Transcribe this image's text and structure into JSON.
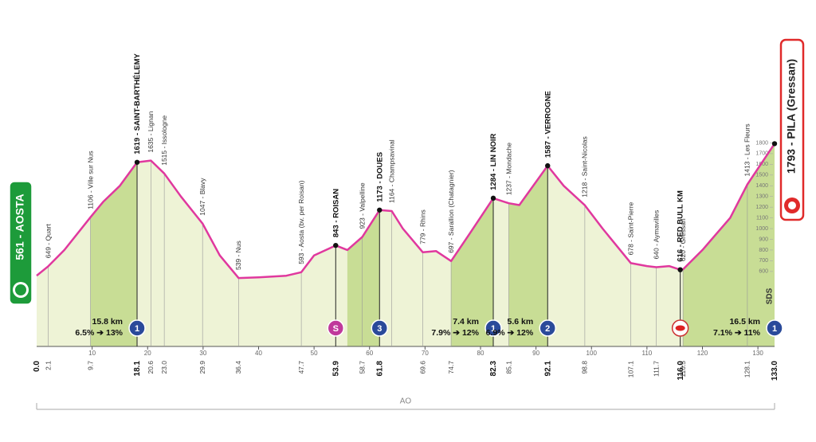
{
  "chart_data": {
    "type": "area",
    "start": {
      "label": "561 - AOSTA",
      "km": 0,
      "elevation": 561
    },
    "finish": {
      "label": "1793 - PILA (Gressan)",
      "km": 133,
      "elevation": 1793
    },
    "x": [
      0,
      2.1,
      5,
      9.7,
      12,
      15,
      18.1,
      20.6,
      23,
      26,
      29.9,
      33,
      36.4,
      40,
      45,
      47.7,
      50,
      53.9,
      56,
      58.7,
      61.8,
      64,
      66,
      69.6,
      72,
      74.7,
      78,
      82.3,
      85.1,
      87,
      92.1,
      95,
      98.8,
      102,
      107.1,
      110,
      111.7,
      114,
      116,
      116.5,
      120,
      125,
      128.1,
      133
    ],
    "values": [
      561,
      649,
      800,
      1106,
      1250,
      1400,
      1619,
      1635,
      1515,
      1300,
      1047,
      750,
      539,
      545,
      560,
      593,
      750,
      843,
      800,
      923,
      1173,
      1164,
      1000,
      779,
      790,
      697,
      950,
      1284,
      1237,
      1220,
      1587,
      1400,
      1218,
      1000,
      678,
      650,
      640,
      650,
      616,
      620,
      800,
      1100,
      1413,
      1793
    ],
    "color": "#e0389e",
    "fill": "#eef3d6",
    "climb_fill": "#c8dd95",
    "climb_shading": [
      [
        9.7,
        18.1
      ],
      [
        56,
        61.8
      ],
      [
        74.7,
        82.3
      ],
      [
        85.1,
        92.1
      ],
      [
        116.5,
        133
      ]
    ],
    "xlim": [
      0,
      133
    ],
    "xticks": [
      10,
      20,
      30,
      40,
      50,
      60,
      70,
      80,
      90,
      100,
      110,
      120,
      130
    ],
    "ylim": [
      -100,
      1900
    ],
    "yticks": [
      600,
      700,
      800,
      900,
      1000,
      1100,
      1200,
      1300,
      1400,
      1500,
      1600,
      1700,
      1800
    ],
    "waypoints": [
      {
        "km": 2.1,
        "label": "649 - Quart",
        "bold": false
      },
      {
        "km": 9.7,
        "label": "1106 - Ville sur Nus",
        "bold": false
      },
      {
        "km": 18.1,
        "label": "1619 - SAINT-BARTHÉLEMY",
        "bold": true
      },
      {
        "km": 20.6,
        "label": "1635 - Lignan",
        "bold": false
      },
      {
        "km": 23,
        "label": "1515 - Issologne",
        "bold": false
      },
      {
        "km": 29.9,
        "label": "1047 - Blavy",
        "bold": false
      },
      {
        "km": 36.4,
        "label": "539 - Nus",
        "bold": false
      },
      {
        "km": 47.7,
        "label": "593 - Aosta (bv. per Roisan)",
        "bold": false
      },
      {
        "km": 53.9,
        "label": "843 - ROISAN",
        "bold": true
      },
      {
        "km": 58.7,
        "label": "923 - Valpelline",
        "bold": false
      },
      {
        "km": 61.8,
        "label": "1173 - DOUES",
        "bold": true
      },
      {
        "km": 64,
        "label": "1164 - Champsavinal",
        "bold": false
      },
      {
        "km": 69.6,
        "label": "779 - Rhins",
        "bold": false
      },
      {
        "km": 74.7,
        "label": "697 - Sarallion (Chatagnier)",
        "bold": false
      },
      {
        "km": 82.3,
        "label": "1284 - LIN NOIR",
        "bold": true
      },
      {
        "km": 85.1,
        "label": "1237 - Mondache",
        "bold": false
      },
      {
        "km": 92.1,
        "label": "1587 - VERROGNE",
        "bold": true
      },
      {
        "km": 98.8,
        "label": "1218 - Saint-Nicolas",
        "bold": false
      },
      {
        "km": 107.1,
        "label": "678 - Saint-Pierre",
        "bold": false
      },
      {
        "km": 111.7,
        "label": "640 - Aymavilles",
        "bold": false
      },
      {
        "km": 116,
        "label": "616 - RED BULL KM",
        "bold": true
      },
      {
        "km": 116.5,
        "label": "620 - Gressan",
        "bold": false
      },
      {
        "km": 128.1,
        "label": "1413 - Les Fleurs",
        "bold": false
      }
    ],
    "km_labels": [
      {
        "value": 0,
        "label": "0.0"
      },
      2.1,
      9.7,
      18.1,
      20.6,
      {
        "value": 23,
        "label": "23.0"
      },
      29.9,
      36.4,
      47.7,
      53.9,
      58.7,
      61.8,
      69.6,
      74.7,
      82.3,
      85.1,
      92.1,
      98.8,
      107.1,
      111.7,
      {
        "value": 116,
        "label": "116.0"
      },
      116.5,
      128.1,
      {
        "value": 133,
        "label": "133.0"
      }
    ],
    "climbs": [
      {
        "km": 18.1,
        "kind": "climb",
        "icon": "1",
        "length": "15.8 km",
        "gradient": "6.5% ➔ 13%"
      },
      {
        "km": 53.9,
        "kind": "sprint",
        "icon": "S"
      },
      {
        "km": 61.8,
        "kind": "climb",
        "icon": "3"
      },
      {
        "km": 82.3,
        "kind": "climb",
        "icon": "1",
        "length": "7.4 km",
        "gradient": "7.9% ➔ 12%"
      },
      {
        "km": 92.1,
        "kind": "climb",
        "icon": "2",
        "length": "5.6 km",
        "gradient": "6.9% ➔ 12%"
      },
      {
        "km": 116,
        "kind": "redbull"
      },
      {
        "km": 133,
        "kind": "climb",
        "icon": "1",
        "length": "16.5 km",
        "gradient": "7.1% ➔ 11%"
      }
    ],
    "region": "AO",
    "logo": "SDS"
  }
}
